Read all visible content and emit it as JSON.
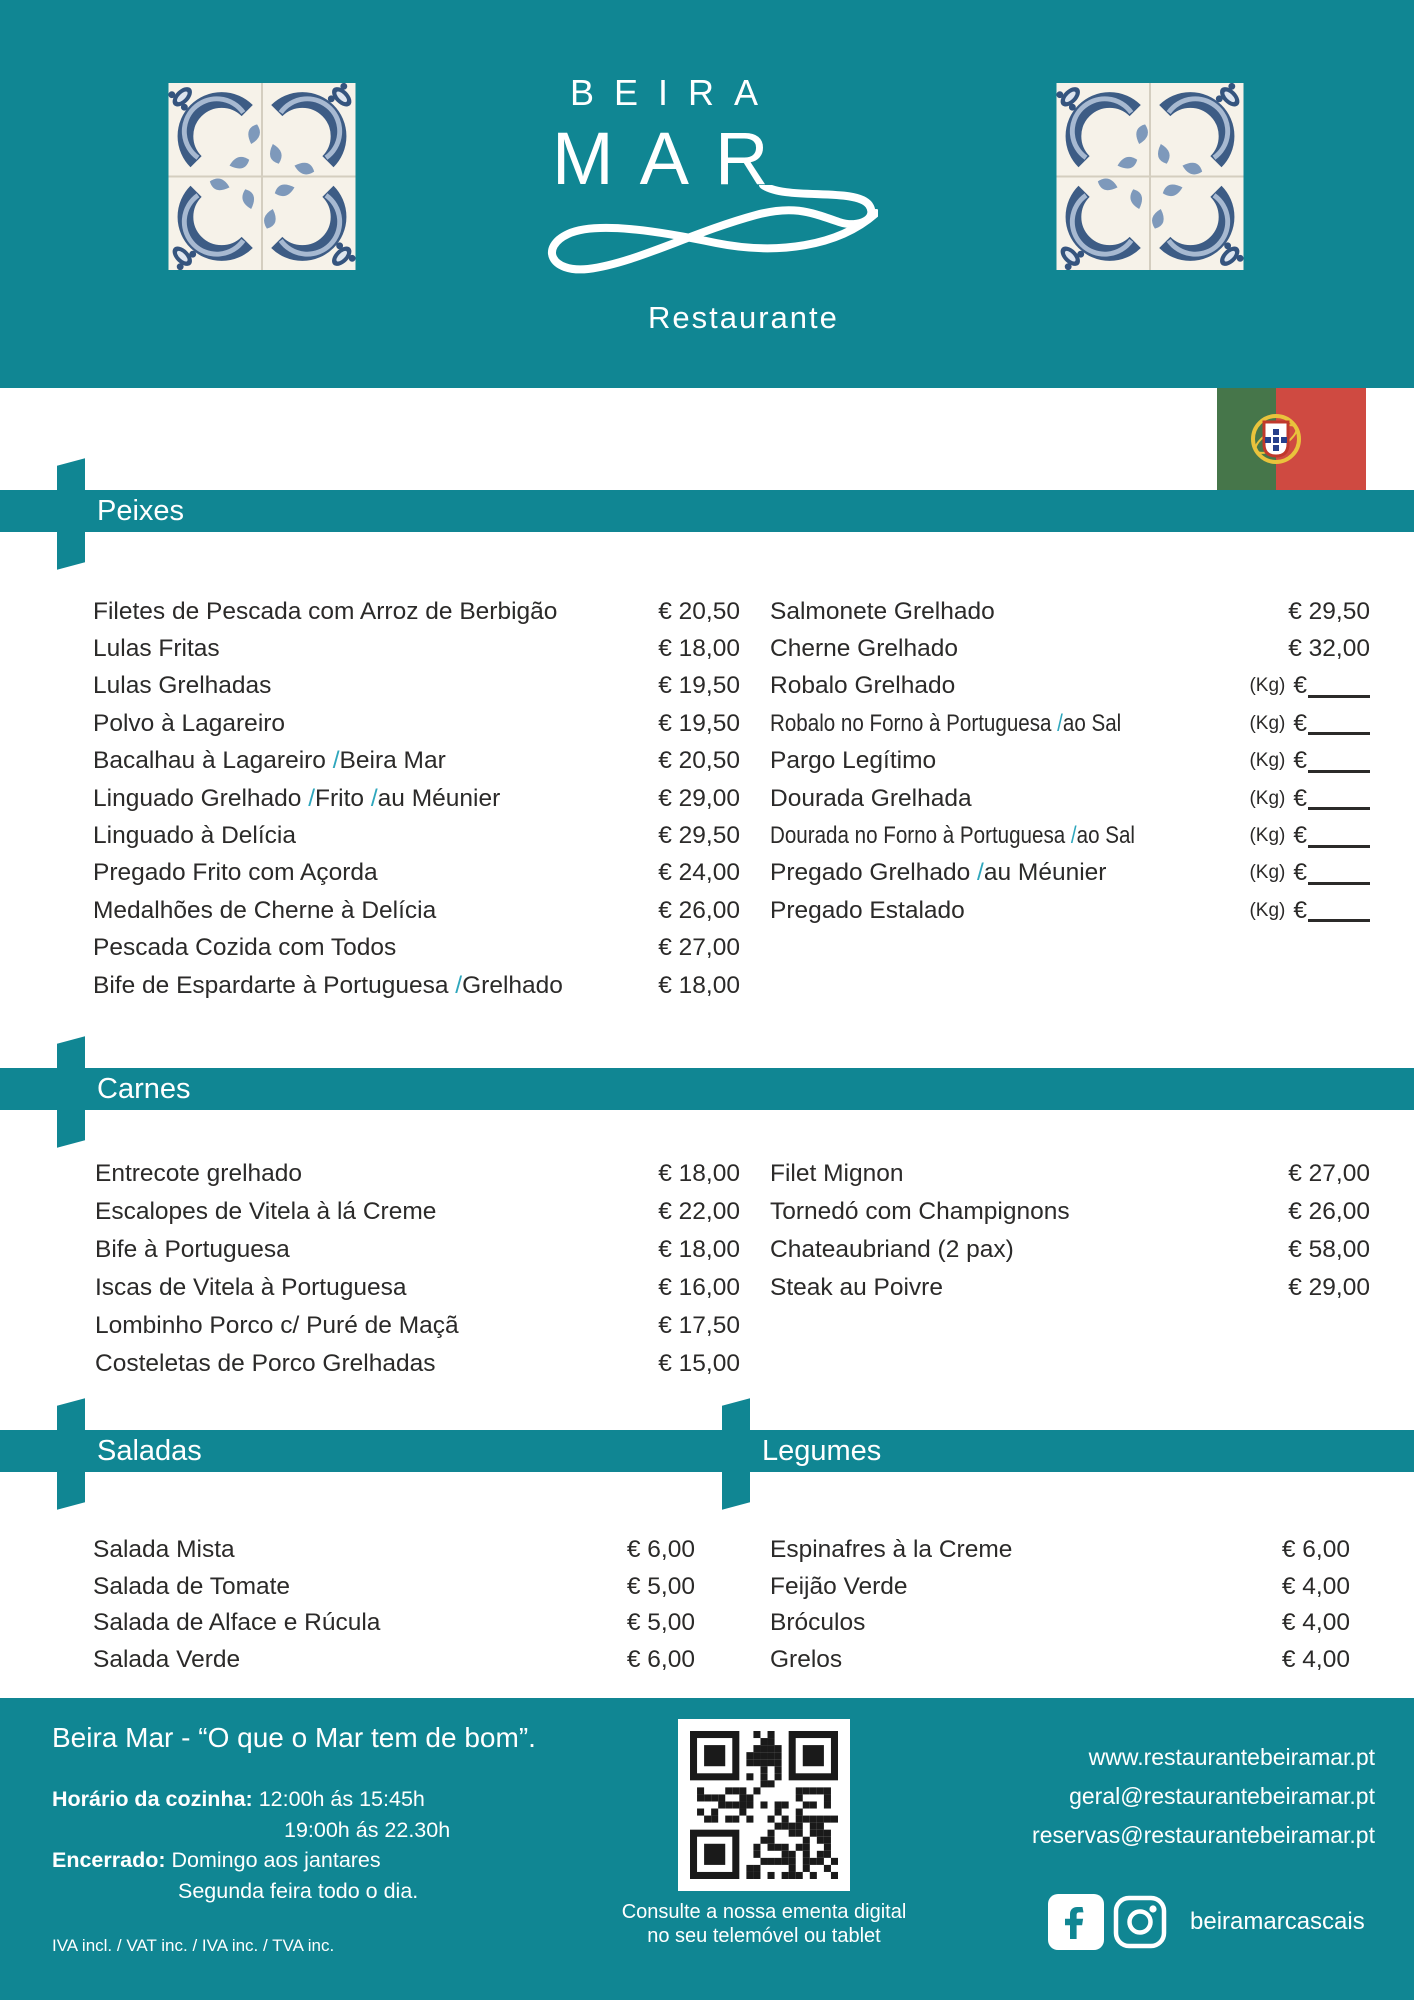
{
  "colors": {
    "teal": "#108693",
    "slash": "#2fa7bd",
    "text": "#2b2a29",
    "flag_green": "#46764a",
    "flag_red": "#cf4a41",
    "flag_yellow": "#e9c33c"
  },
  "brand": {
    "name_line1": "BEIRA",
    "name_line2": "MAR",
    "subtitle": "Restaurante"
  },
  "labels": {
    "kg": "(Kg)",
    "euro": "€"
  },
  "menu": {
    "peixes": {
      "title": "Peixes",
      "left": [
        {
          "name": "Filetes de Pescada com Arroz de Berbigão",
          "price": "€ 20,50"
        },
        {
          "name": "Lulas Fritas",
          "price": "€ 18,00"
        },
        {
          "name": "Lulas Grelhadas",
          "price": "€ 19,50"
        },
        {
          "name": "Polvo à Lagareiro",
          "price": "€ 19,50"
        },
        {
          "name": "Bacalhau à Lagareiro /Beira Mar",
          "price": "€ 20,50"
        },
        {
          "name": "Linguado Grelhado /Frito /au Méunier",
          "price": "€ 29,00"
        },
        {
          "name": "Linguado à Delícia",
          "price": "€ 29,50"
        },
        {
          "name": "Pregado Frito com Açorda",
          "price": "€ 24,00"
        },
        {
          "name": "Medalhões de Cherne à Delícia",
          "price": "€ 26,00"
        },
        {
          "name": "Pescada Cozida com Todos",
          "price": "€ 27,00"
        },
        {
          "name": "Bife de Espardarte à Portuguesa /Grelhado",
          "price": "€ 18,00"
        }
      ],
      "right": [
        {
          "name": "Salmonete Grelhado",
          "price": "€ 29,50"
        },
        {
          "name": "Cherne Grelhado",
          "price": "€ 32,00"
        },
        {
          "name": "Robalo Grelhado",
          "kg": true
        },
        {
          "name": "Robalo no Forno à Portuguesa /ao Sal",
          "kg": true,
          "condensed": true
        },
        {
          "name": "Pargo Legítimo",
          "kg": true
        },
        {
          "name": "Dourada Grelhada",
          "kg": true
        },
        {
          "name": "Dourada no Forno à Portuguesa /ao Sal",
          "kg": true,
          "condensed": true
        },
        {
          "name": "Pregado Grelhado /au Méunier",
          "kg": true
        },
        {
          "name": "Pregado Estalado",
          "kg": true
        }
      ]
    },
    "carnes": {
      "title": "Carnes",
      "left": [
        {
          "name": "Entrecote grelhado",
          "price": "€ 18,00"
        },
        {
          "name": "Escalopes de Vitela à lá Creme",
          "price": "€ 22,00"
        },
        {
          "name": "Bife à Portuguesa",
          "price": "€ 18,00"
        },
        {
          "name": "Iscas de Vitela à Portuguesa",
          "price": "€ 16,00"
        },
        {
          "name": "Lombinho Porco c/ Puré de Maçã",
          "price": "€ 17,50"
        },
        {
          "name": "Costeletas de Porco Grelhadas",
          "price": "€ 15,00"
        }
      ],
      "right": [
        {
          "name": "Filet Mignon",
          "price": "€ 27,00"
        },
        {
          "name": "Tornedó com Champignons",
          "price": "€ 26,00"
        },
        {
          "name": "Chateaubriand (2 pax)",
          "price": "€ 58,00"
        },
        {
          "name": "Steak au Poivre",
          "price": "€ 29,00"
        }
      ]
    },
    "saladas": {
      "title": "Saladas",
      "items": [
        {
          "name": "Salada Mista",
          "price": "€ 6,00"
        },
        {
          "name": "Salada de Tomate",
          "price": "€ 5,00"
        },
        {
          "name": "Salada de Alface e Rúcula",
          "price": "€ 5,00"
        },
        {
          "name": "Salada Verde",
          "price": "€ 6,00"
        }
      ]
    },
    "legumes": {
      "title": "Legumes",
      "items": [
        {
          "name": "Espinafres à la Creme",
          "price": "€ 6,00"
        },
        {
          "name": "Feijão Verde",
          "price": "€ 4,00"
        },
        {
          "name": "Bróculos",
          "price": "€ 4,00"
        },
        {
          "name": "Grelos",
          "price": "€ 4,00"
        }
      ]
    }
  },
  "footer": {
    "tagline": "Beira Mar - “O que o Mar tem de bom”.",
    "hours_label": "Horário da cozinha:",
    "hours_1": "12:00h ás 15:45h",
    "hours_2": "19:00h ás 22.30h",
    "closed_label": "Encerrado:",
    "closed_1": "Domingo aos jantares",
    "closed_2": "Segunda feira todo o dia.",
    "vat_note": "IVA incl. / VAT inc. / IVA inc. / TVA inc.",
    "qr_caption_1": "Consulte a nossa ementa digital",
    "qr_caption_2": "no seu telemóvel ou tablet",
    "website": "www.restaurantebeiramar.pt",
    "email_general": "geral@restaurantebeiramar.pt",
    "email_reservations": "reservas@restaurantebeiramar.pt",
    "social_handle": "beiramarcascais"
  }
}
